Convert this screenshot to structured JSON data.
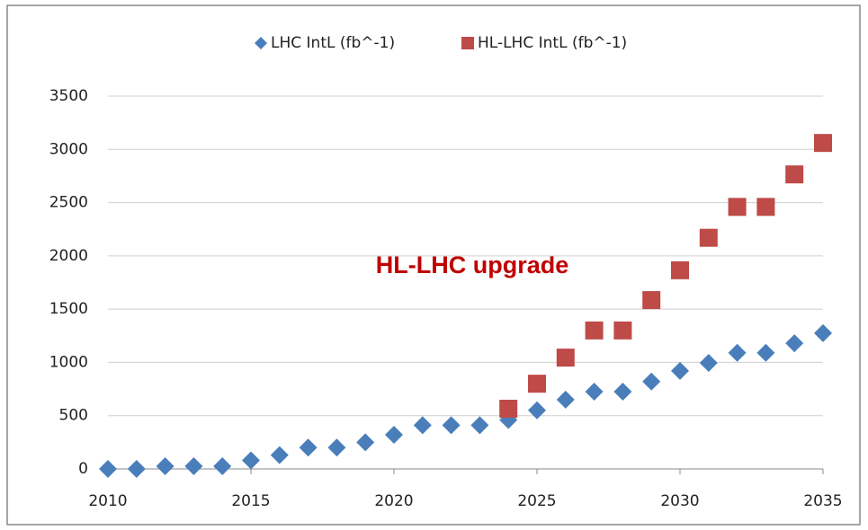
{
  "chart_data": {
    "type": "scatter",
    "annotation": "HL-LHC upgrade",
    "x": [
      2010,
      2011,
      2012,
      2013,
      2014,
      2015,
      2016,
      2017,
      2018,
      2019,
      2020,
      2021,
      2022,
      2023,
      2024,
      2025,
      2026,
      2027,
      2028,
      2029,
      2030,
      2031,
      2032,
      2033,
      2034,
      2035
    ],
    "series": [
      {
        "name": "LHC IntL (fb^-1)",
        "color": "#4a7ebb",
        "marker": "diamond",
        "values": [
          0,
          0,
          25,
          25,
          25,
          80,
          130,
          200,
          200,
          250,
          320,
          410,
          410,
          410,
          460,
          550,
          650,
          725,
          725,
          820,
          920,
          995,
          1090,
          1090,
          1180,
          1275
        ]
      },
      {
        "name": "HL-LHC IntL (fb^-1)",
        "color": "#be4b48",
        "marker": "square",
        "values": [
          null,
          null,
          null,
          null,
          null,
          null,
          null,
          null,
          null,
          null,
          null,
          null,
          null,
          null,
          565,
          800,
          1045,
          1300,
          1300,
          1585,
          1865,
          2170,
          2460,
          2460,
          2765,
          3060
        ]
      }
    ],
    "xlim": [
      2010,
      2035
    ],
    "xticks": [
      2010,
      2015,
      2020,
      2025,
      2030,
      2035
    ],
    "ylim": [
      0,
      3500
    ],
    "yticks": [
      0,
      500,
      1000,
      1500,
      2000,
      2500,
      3000,
      3500
    ],
    "grid": true,
    "legend": "top"
  }
}
